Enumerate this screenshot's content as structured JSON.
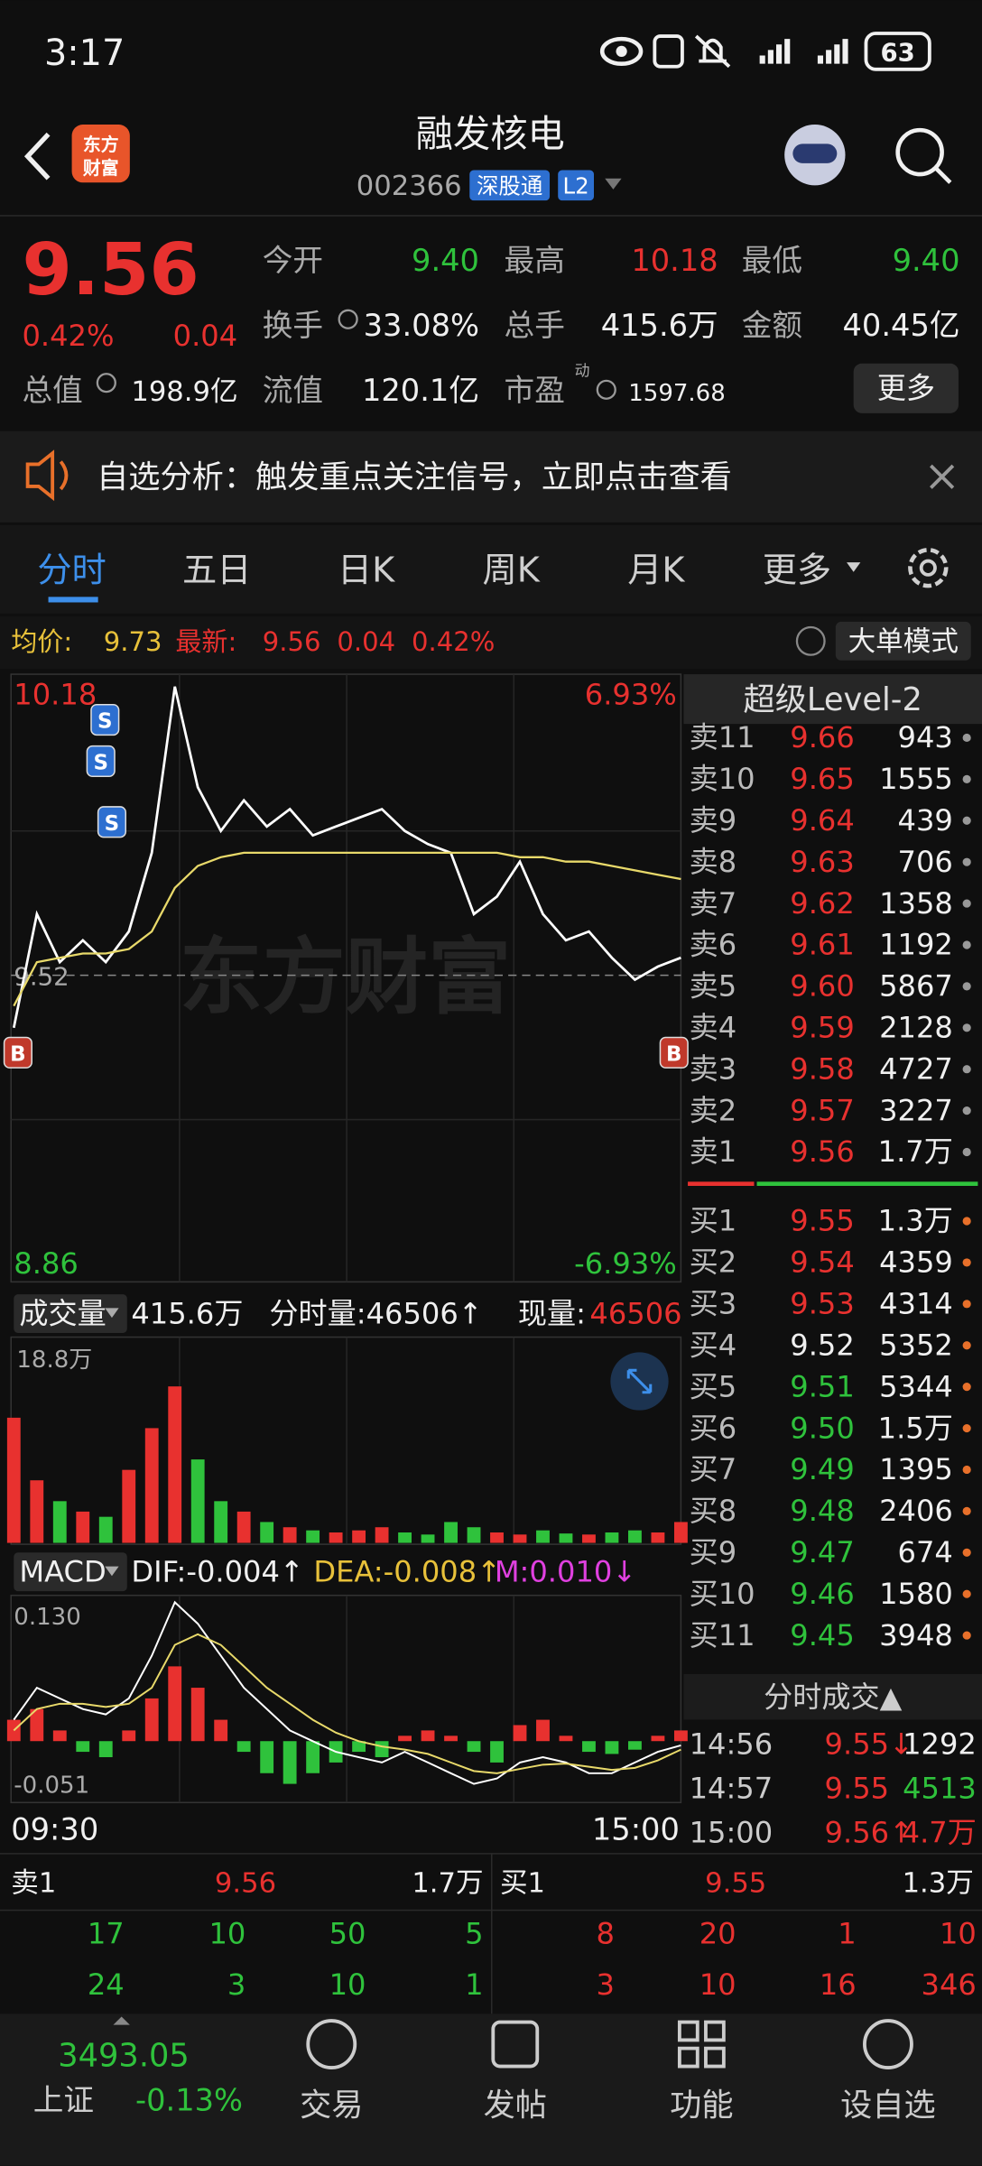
{
  "status_bar": {
    "time": "3:17",
    "battery": "63"
  },
  "header": {
    "logo": [
      "东方",
      "财富"
    ],
    "title": "融发核电",
    "code": "002366",
    "tags": [
      "深股通",
      "L2"
    ]
  },
  "quote": {
    "price": "9.56",
    "change_pct": "0.42%",
    "change": "0.04",
    "market_cap_label": "总值",
    "market_cap": "198.9亿",
    "fields": [
      {
        "label": "今开",
        "value": "9.40",
        "color": "#2fc23c"
      },
      {
        "label": "最高",
        "value": "10.18",
        "color": "#e8312f"
      },
      {
        "label": "最低",
        "value": "9.40",
        "color": "#2fc23c"
      },
      {
        "label": "换手",
        "value": "33.08%",
        "color": "#f0f0f0"
      },
      {
        "label": "总手",
        "value": "415.6万",
        "color": "#f0f0f0"
      },
      {
        "label": "金额",
        "value": "40.45亿",
        "color": "#f0f0f0"
      },
      {
        "label": "流值",
        "value": "120.1亿",
        "color": "#f0f0f0"
      }
    ],
    "pe": {
      "label": "市盈",
      "tag": "动",
      "value": "1597.68"
    },
    "more": "更多"
  },
  "banner": {
    "text": "自选分析：触发重点关注信号，立即点击查看"
  },
  "tabs": [
    "分时",
    "五日",
    "日K",
    "周K",
    "月K",
    "更多"
  ],
  "active_tab": 0,
  "info_bar": {
    "avg_label": "均价:",
    "avg": "9.73",
    "last_label": "最新:",
    "last": "9.56",
    "change": "0.04",
    "change_pct": "0.42%",
    "button": "大单模式"
  },
  "chart_data": [
    {
      "type": "line",
      "watermark": "东方财富",
      "categories": [
        "09:30",
        null,
        null,
        null,
        null,
        null,
        null,
        null,
        null,
        null,
        null,
        null,
        null,
        null,
        null,
        null,
        null,
        null,
        null,
        null,
        null,
        null,
        null,
        null,
        null,
        null,
        null,
        null,
        null,
        "15:00"
      ],
      "series": [
        {
          "color": "#ffffff",
          "values": [
            9.4,
            9.66,
            9.55,
            9.6,
            9.55,
            9.62,
            9.8,
            10.18,
            9.95,
            9.85,
            9.92,
            9.86,
            9.9,
            9.84,
            9.86,
            9.88,
            9.9,
            9.85,
            9.82,
            9.8,
            9.66,
            9.7,
            9.78,
            9.66,
            9.6,
            9.62,
            9.56,
            9.51,
            9.54,
            9.56
          ]
        },
        {
          "color": "#e8d96a",
          "values": [
            9.45,
            9.55,
            9.56,
            9.57,
            9.57,
            9.58,
            9.62,
            9.72,
            9.77,
            9.79,
            9.8,
            9.8,
            9.8,
            9.8,
            9.8,
            9.8,
            9.8,
            9.8,
            9.8,
            9.8,
            9.8,
            9.8,
            9.79,
            9.79,
            9.78,
            9.78,
            9.77,
            9.76,
            9.75,
            9.74
          ]
        }
      ],
      "ylim": [
        8.86,
        10.18
      ],
      "yticks": [
        10.18,
        8.86
      ],
      "y2lim": [
        -6.93,
        6.93
      ],
      "y2ticks": [
        {
          "value": 6.93,
          "label": "6.93%"
        },
        {
          "value": -6.93,
          "label": "-6.93%"
        }
      ],
      "reference": 9.52,
      "markers": [
        "S",
        "S",
        "S",
        "B",
        "B"
      ]
    },
    {
      "type": "bar",
      "header": {
        "button": "成交量",
        "total": "415.6万",
        "tick_volume": "分时量:46506↑",
        "current_label": "现量:",
        "current": "46506"
      },
      "ylim": [
        0,
        188000
      ],
      "yticks": [
        {
          "value": 188000,
          "label": "18.8万"
        }
      ],
      "values": [
        120000,
        60000,
        40000,
        30000,
        25000,
        70000,
        110000,
        150000,
        80000,
        40000,
        30000,
        20000,
        15000,
        12000,
        10000,
        12000,
        15000,
        10000,
        8000,
        20000,
        15000,
        10000,
        8000,
        12000,
        9000,
        8000,
        10000,
        12000,
        10000,
        20000
      ],
      "colors": [
        "#e8312f",
        "#e8312f",
        "#2fc23c",
        "#e8312f",
        "#2fc23c",
        "#e8312f",
        "#e8312f",
        "#e8312f",
        "#2fc23c",
        "#2fc23c",
        "#e8312f",
        "#2fc23c",
        "#e8312f",
        "#2fc23c",
        "#e8312f",
        "#e8312f",
        "#e8312f",
        "#2fc23c",
        "#2fc23c",
        "#2fc23c",
        "#2fc23c",
        "#e8312f",
        "#e8312f",
        "#2fc23c",
        "#2fc23c",
        "#e8312f",
        "#2fc23c",
        "#2fc23c",
        "#e8312f",
        "#e8312f"
      ]
    },
    {
      "type": "macd",
      "header": {
        "button": "MACD",
        "dif": "DIF:-0.004↑",
        "dea": "DEA:-0.008↑",
        "m": "M:0.010↓"
      },
      "ylim": [
        -0.051,
        0.13
      ],
      "yticks": [
        {
          "value": 0.13,
          "label": "0.130"
        },
        -0.051
      ],
      "bars": [
        0.02,
        0.03,
        0.01,
        -0.01,
        -0.015,
        0.01,
        0.04,
        0.07,
        0.05,
        0.02,
        -0.01,
        -0.03,
        -0.04,
        -0.03,
        -0.02,
        -0.01,
        -0.015,
        0.005,
        0.01,
        0.005,
        -0.01,
        -0.02,
        0.015,
        0.02,
        0.005,
        -0.01,
        -0.012,
        -0.008,
        0.005,
        0.01
      ],
      "bar_colors": {
        "up": "#e8312f",
        "down": "#2fc23c"
      },
      "series": [
        {
          "color": "#ffffff",
          "values": [
            0.02,
            0.05,
            0.04,
            0.03,
            0.025,
            0.04,
            0.08,
            0.13,
            0.11,
            0.08,
            0.05,
            0.03,
            0.01,
            0.0,
            -0.01,
            -0.015,
            -0.02,
            -0.01,
            -0.02,
            -0.03,
            -0.04,
            -0.035,
            -0.02,
            -0.015,
            -0.02,
            -0.03,
            -0.03,
            -0.02,
            -0.01,
            -0.004
          ]
        },
        {
          "color": "#e8d96a",
          "values": [
            0.01,
            0.03,
            0.035,
            0.035,
            0.032,
            0.035,
            0.05,
            0.09,
            0.1,
            0.09,
            0.07,
            0.05,
            0.035,
            0.02,
            0.008,
            0.0,
            -0.005,
            -0.008,
            -0.012,
            -0.02,
            -0.028,
            -0.03,
            -0.026,
            -0.022,
            -0.021,
            -0.024,
            -0.027,
            -0.025,
            -0.018,
            -0.008
          ]
        }
      ]
    }
  ],
  "order_book": {
    "title": "超级Level-2",
    "asks": [
      [
        "卖11",
        "9.66",
        "943"
      ],
      [
        "卖10",
        "9.65",
        "1555"
      ],
      [
        "卖9",
        "9.64",
        "439"
      ],
      [
        "卖8",
        "9.63",
        "706"
      ],
      [
        "卖7",
        "9.62",
        "1358"
      ],
      [
        "卖6",
        "9.61",
        "1192"
      ],
      [
        "卖5",
        "9.60",
        "5867"
      ],
      [
        "卖4",
        "9.59",
        "2128"
      ],
      [
        "卖3",
        "9.58",
        "4727"
      ],
      [
        "卖2",
        "9.57",
        "3227"
      ],
      [
        "卖1",
        "9.56",
        "1.7万"
      ]
    ],
    "bids": [
      [
        "买1",
        "9.55",
        "1.3万"
      ],
      [
        "买2",
        "9.54",
        "4359"
      ],
      [
        "买3",
        "9.53",
        "4314"
      ],
      [
        "买4",
        "9.52",
        "5352"
      ],
      [
        "买5",
        "9.51",
        "5344"
      ],
      [
        "买6",
        "9.50",
        "1.5万"
      ],
      [
        "买7",
        "9.49",
        "1395"
      ],
      [
        "买8",
        "9.48",
        "2406"
      ],
      [
        "买9",
        "9.47",
        "674"
      ],
      [
        "买10",
        "9.46",
        "1580"
      ],
      [
        "买11",
        "9.45",
        "3948"
      ]
    ]
  },
  "trades": {
    "title": "分时成交▲",
    "rows": [
      [
        "14:56",
        "9.55↓",
        "1292"
      ],
      [
        "14:57",
        "9.55",
        "4513"
      ],
      [
        "15:00",
        "9.56↑",
        "4.7万"
      ]
    ],
    "volume_colors": [
      "#f0f0f0",
      "#2fc23c",
      "#e8312f"
    ]
  },
  "depth": {
    "ask_label": "卖1",
    "ask_price": "9.56",
    "ask_volume": "1.7万",
    "bid_label": "买1",
    "bid_price": "9.55",
    "bid_volume": "1.3万",
    "ask_queue": [
      [
        17,
        10,
        50,
        5
      ],
      [
        24,
        3,
        10,
        1
      ]
    ],
    "bid_queue": [
      [
        8,
        20,
        1,
        10
      ],
      [
        3,
        10,
        16,
        346
      ]
    ]
  },
  "nav": {
    "index_value": "3493.05",
    "index_name": "上证",
    "index_change": "-0.13%",
    "items": [
      "交易",
      "发帖",
      "功能",
      "设自选"
    ]
  }
}
